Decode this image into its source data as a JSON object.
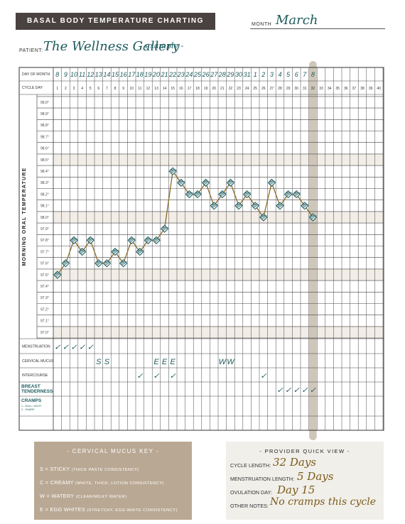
{
  "header": {
    "title": "BASAL BODY TEMPERATURE CHARTING",
    "month_label": "MONTH",
    "month_value": "March",
    "patient_label": "PATIENT:",
    "patient_value": "The Wellness Gallery",
    "patient_note": "- example -"
  },
  "chart_data": {
    "type": "line",
    "title": "BASAL BODY TEMPERATURE CHARTING",
    "ylabel": "MORNING ORAL TEMPERATURE",
    "xlabel": "CYCLE DAY",
    "row_labels": {
      "day_of_month": "DAY OF MONTH",
      "cycle_day": "CYCLE DAY"
    },
    "day_of_month": [
      "8",
      "9",
      "10",
      "11",
      "12",
      "13",
      "14",
      "15",
      "16",
      "17",
      "18",
      "19",
      "20",
      "21",
      "22",
      "23",
      "24",
      "25",
      "26",
      "27",
      "28",
      "29",
      "30",
      "31",
      "1",
      "2",
      "3",
      "4",
      "5",
      "6",
      "7",
      "8"
    ],
    "cycle_days": [
      1,
      2,
      3,
      4,
      5,
      6,
      7,
      8,
      9,
      10,
      11,
      12,
      13,
      14,
      15,
      16,
      17,
      18,
      19,
      20,
      21,
      22,
      23,
      24,
      25,
      26,
      27,
      28,
      29,
      30,
      31,
      32,
      33,
      34,
      35,
      36,
      37,
      38,
      39,
      40
    ],
    "temperature_labels": [
      "99.0°",
      "98.9°",
      "98.8°",
      "98.7°",
      "98.6°",
      "98.5°",
      "98.4°",
      "98.3°",
      "98.2°",
      "98.1°",
      "98.0°",
      "97.9°",
      "97.8°",
      "97.7°",
      "97.6°",
      "97.5°",
      "97.4°",
      "97.3°",
      "97.2°",
      "97.1°",
      "97.0°"
    ],
    "ylim": [
      97.0,
      99.0
    ],
    "series": [
      {
        "x": [
          1,
          2,
          3,
          4,
          5,
          6,
          7,
          8,
          9,
          10,
          11,
          12,
          13,
          14,
          15,
          16,
          17,
          18,
          19,
          20,
          21,
          22,
          23,
          24,
          25,
          26,
          27,
          28,
          29,
          30,
          31,
          32
        ],
        "values": [
          97.5,
          97.6,
          97.8,
          97.7,
          97.8,
          97.6,
          97.6,
          97.7,
          97.6,
          97.8,
          97.7,
          97.8,
          97.8,
          97.9,
          98.4,
          98.3,
          98.2,
          98.2,
          98.3,
          98.1,
          98.2,
          98.3,
          98.1,
          98.2,
          98.1,
          98.0,
          98.3,
          98.1,
          98.2,
          98.2,
          98.1,
          98.0
        ]
      }
    ],
    "highlighted_cycle_day": 32,
    "grid": true,
    "bottom_rows": [
      "MENSTRUATION",
      "CERVICAL MUCUS",
      "INTERCOURSE",
      "BREAST TENDERNESS",
      "CRAMPS"
    ],
    "cramps_note": [
      "1 - DULL / ACHY",
      "2 - SHARP"
    ],
    "symptom_marks": {
      "menstruation": {
        "days": [
          1,
          2,
          3,
          4,
          5
        ],
        "mark": "✓"
      },
      "cervical_mucus": [
        {
          "day": 6,
          "mark": "S"
        },
        {
          "day": 7,
          "mark": "S"
        },
        {
          "day": 13,
          "mark": "E"
        },
        {
          "day": 14,
          "mark": "E"
        },
        {
          "day": 15,
          "mark": "E"
        },
        {
          "day": 21,
          "mark": "W"
        },
        {
          "day": 22,
          "mark": "W"
        }
      ],
      "intercourse": {
        "days": [
          11,
          13,
          15,
          26
        ],
        "mark": "✓"
      },
      "breast_tenderness": {
        "days": [
          28,
          29,
          30,
          31,
          32
        ],
        "mark": "✓"
      }
    }
  },
  "mucus_key": {
    "title": "- CERVICAL MUCUS KEY -",
    "items": [
      {
        "code": "S",
        "name": "STICKY",
        "desc": "(THICK PASTE CONSISTENCY)"
      },
      {
        "code": "C",
        "name": "CREAMY",
        "desc": "(WHITE, THICK, LOTION CONSISTENCY)"
      },
      {
        "code": "W",
        "name": "WATERY",
        "desc": "(CLEAR/MILKY WATER)"
      },
      {
        "code": "E",
        "name": "EGG WHITES",
        "desc": "(STRETCHY, EGG WHITE CONSISTENCY)"
      }
    ]
  },
  "provider": {
    "title": "- PROVIDER QUICK VIEW -",
    "cycle_length_label": "CYCLE LENGTH:",
    "cycle_length_value": "32 Days",
    "menstruation_length_label": "MENSTRUATION LENGTH:",
    "menstruation_length_value": "5 Days",
    "ovulation_day_label": "OVULATION DAY:",
    "ovulation_day_value": "Day 15",
    "other_notes_label": "OTHER NOTES:",
    "other_notes_value": "No cramps this cycle"
  },
  "colors": {
    "title_bar": "#4a4240",
    "line": "#8b6a2a",
    "marker": "#1f5b5e",
    "highlight_column": "#cfc6ba",
    "key_box": "#b9a893",
    "provider_box": "#f1efea",
    "shaded_row": "#f2ede6"
  }
}
